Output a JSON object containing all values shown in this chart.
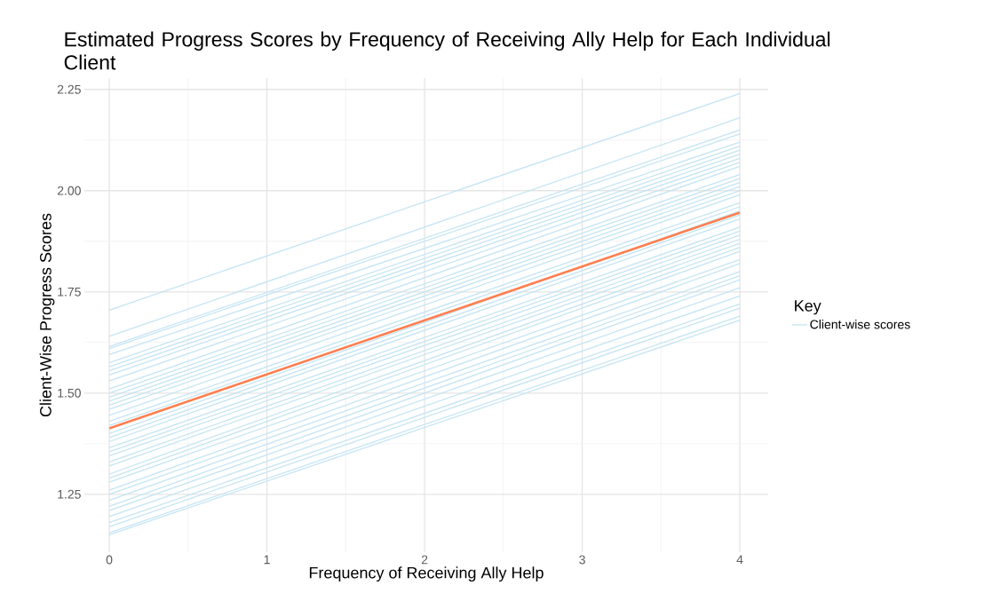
{
  "chart_data": {
    "type": "line",
    "title": "Estimated Progress Scores by Frequency of Receiving Ally Help for Each Individual Client",
    "xlabel": "Frequency of Receiving Ally Help",
    "ylabel": "Client-Wise Progress Scores",
    "legend_title": "Key",
    "legend": "right",
    "grid": true,
    "line_style": "solid",
    "marker": "none",
    "x": [
      0,
      4
    ],
    "xlim": [
      -0.158,
      4.18
    ],
    "ylim": [
      1.107,
      2.278
    ],
    "xticks": [
      0,
      1,
      2,
      3,
      4
    ],
    "yticks": [
      {
        "value": 1.25,
        "label": "1.25"
      },
      {
        "value": 1.5,
        "label": "1.50"
      },
      {
        "value": 1.75,
        "label": "1.75"
      },
      {
        "value": 2.0,
        "label": "2.00"
      },
      {
        "value": 2.25,
        "label": "2.25"
      }
    ],
    "series": [
      {
        "name": "Client-wise scores",
        "color": "#c5e4f3",
        "values": [
          1.705,
          2.24
        ]
      },
      {
        "color": "#c5e4f3",
        "values": [
          1.64,
          2.18
        ]
      },
      {
        "color": "#c5e4f3",
        "values": [
          1.615,
          2.15
        ]
      },
      {
        "color": "#c5e4f3",
        "values": [
          1.61,
          2.14
        ]
      },
      {
        "color": "#c5e4f3",
        "values": [
          1.595,
          2.12
        ]
      },
      {
        "color": "#c5e4f3",
        "values": [
          1.575,
          2.11
        ]
      },
      {
        "color": "#c5e4f3",
        "values": [
          1.565,
          2.1
        ]
      },
      {
        "color": "#c5e4f3",
        "values": [
          1.555,
          2.09
        ]
      },
      {
        "color": "#c5e4f3",
        "values": [
          1.545,
          2.08
        ]
      },
      {
        "color": "#c5e4f3",
        "values": [
          1.53,
          2.07
        ]
      },
      {
        "color": "#c5e4f3",
        "values": [
          1.51,
          2.06
        ]
      },
      {
        "color": "#c5e4f3",
        "values": [
          1.5,
          2.04
        ]
      },
      {
        "color": "#c5e4f3",
        "values": [
          1.49,
          2.03
        ]
      },
      {
        "color": "#c5e4f3",
        "values": [
          1.48,
          2.02
        ]
      },
      {
        "color": "#c5e4f3",
        "values": [
          1.47,
          2.01
        ]
      },
      {
        "color": "#c5e4f3",
        "values": [
          1.46,
          2.0
        ]
      },
      {
        "color": "#c5e4f3",
        "values": [
          1.445,
          1.99
        ]
      },
      {
        "color": "#c5e4f3",
        "values": [
          1.43,
          1.97
        ]
      },
      {
        "color": "#c5e4f3",
        "values": [
          1.42,
          1.96
        ]
      },
      {
        "color": "#c5e4f3",
        "values": [
          1.4,
          1.95
        ]
      },
      {
        "color": "#c5e4f3",
        "values": [
          1.39,
          1.94
        ]
      },
      {
        "color": "#c5e4f3",
        "values": [
          1.38,
          1.93
        ]
      },
      {
        "color": "#c5e4f3",
        "values": [
          1.365,
          1.91
        ]
      },
      {
        "color": "#c5e4f3",
        "values": [
          1.355,
          1.9
        ]
      },
      {
        "color": "#c5e4f3",
        "values": [
          1.345,
          1.89
        ]
      },
      {
        "color": "#c5e4f3",
        "values": [
          1.33,
          1.88
        ]
      },
      {
        "color": "#c5e4f3",
        "values": [
          1.32,
          1.87
        ]
      },
      {
        "color": "#c5e4f3",
        "values": [
          1.3,
          1.86
        ]
      },
      {
        "color": "#c5e4f3",
        "values": [
          1.29,
          1.85
        ]
      },
      {
        "color": "#c5e4f3",
        "values": [
          1.28,
          1.83
        ]
      },
      {
        "color": "#c5e4f3",
        "values": [
          1.26,
          1.82
        ]
      },
      {
        "color": "#c5e4f3",
        "values": [
          1.25,
          1.8
        ]
      },
      {
        "color": "#c5e4f3",
        "values": [
          1.235,
          1.79
        ]
      },
      {
        "color": "#c5e4f3",
        "values": [
          1.22,
          1.78
        ]
      },
      {
        "color": "#c5e4f3",
        "values": [
          1.21,
          1.76
        ]
      },
      {
        "color": "#c5e4f3",
        "values": [
          1.195,
          1.74
        ]
      },
      {
        "color": "#c5e4f3",
        "values": [
          1.18,
          1.72
        ]
      },
      {
        "color": "#c5e4f3",
        "values": [
          1.17,
          1.71
        ]
      },
      {
        "color": "#c5e4f3",
        "values": [
          1.155,
          1.69
        ]
      },
      {
        "color": "#c5e4f3",
        "values": [
          1.15,
          1.68
        ]
      },
      {
        "color": "#ff7f50",
        "values": [
          1.413,
          1.946
        ]
      }
    ]
  }
}
